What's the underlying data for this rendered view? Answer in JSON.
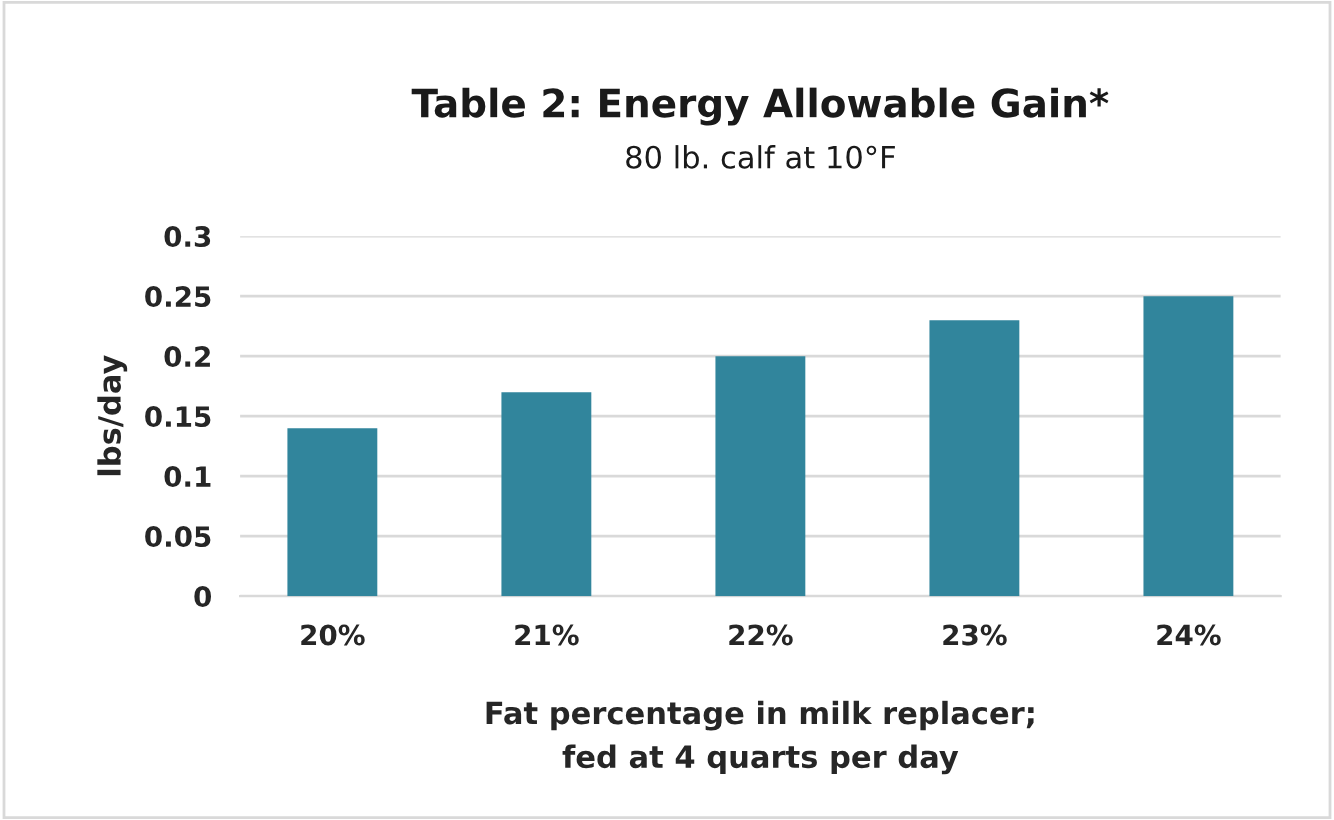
{
  "chart_data": {
    "type": "bar",
    "title": "Table 2: Energy Allowable Gain*",
    "subtitle": "80 lb. calf at 10°F",
    "xlabel": "Fat percentage in milk replacer;\nfed at 4 quarts per day",
    "ylabel": "lbs/day",
    "categories": [
      "20%",
      "21%",
      "22%",
      "23%",
      "24%"
    ],
    "values": [
      0.14,
      0.17,
      0.2,
      0.23,
      0.25
    ],
    "color": "#31859c",
    "ylim": [
      0,
      0.3
    ],
    "yticks": [
      0,
      0.05,
      0.1,
      0.15,
      0.2,
      0.25,
      0.3
    ],
    "grid": "y",
    "legend": false
  }
}
